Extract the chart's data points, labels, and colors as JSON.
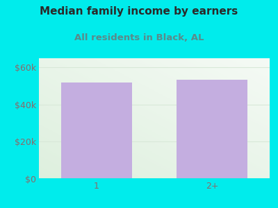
{
  "title": "Median family income by earners",
  "subtitle": "All residents in Black, AL",
  "categories": [
    "1",
    "2+"
  ],
  "values": [
    52000,
    53500
  ],
  "bar_color": "#c4aee0",
  "background_color": "#00ecec",
  "title_color": "#2a2a2a",
  "subtitle_color": "#5a8a8a",
  "tick_color": "#8a6a6a",
  "ylim": [
    0,
    65000
  ],
  "yticks": [
    0,
    20000,
    40000,
    60000
  ],
  "ytick_labels": [
    "$0",
    "$20k",
    "$40k",
    "$60k"
  ],
  "title_fontsize": 11,
  "subtitle_fontsize": 9.5,
  "tick_fontsize": 9
}
